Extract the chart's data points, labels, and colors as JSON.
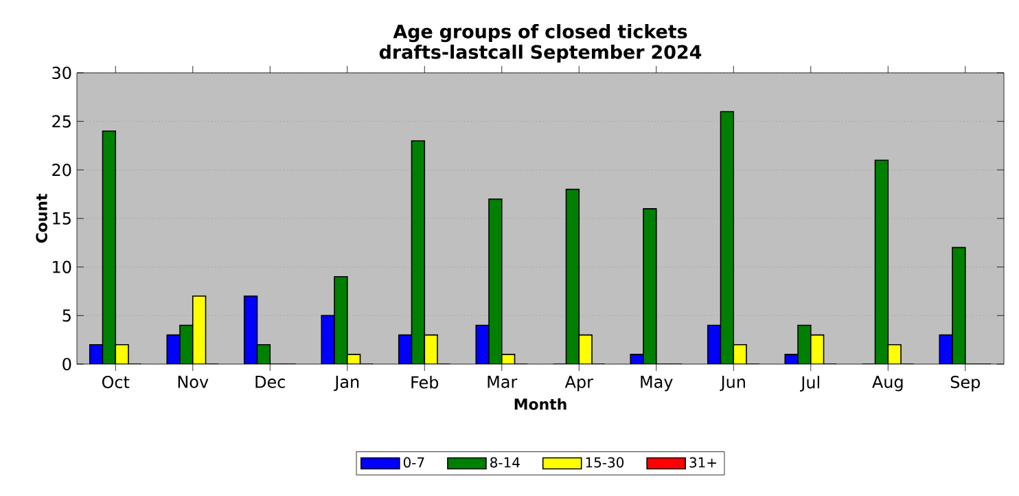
{
  "chart_data": {
    "type": "bar",
    "title": "Age groups of closed tickets\ndrafts-lastcall September 2024",
    "xlabel": "Month",
    "ylabel": "Count",
    "categories": [
      "Oct",
      "Nov",
      "Dec",
      "Jan",
      "Feb",
      "Mar",
      "Apr",
      "May",
      "Jun",
      "Jul",
      "Aug",
      "Sep"
    ],
    "series": [
      {
        "name": "0-7",
        "color": "#0000ff",
        "values": [
          2,
          3,
          7,
          5,
          3,
          4,
          0,
          1,
          4,
          1,
          0,
          3
        ]
      },
      {
        "name": "8-14",
        "color": "#008000",
        "values": [
          24,
          4,
          2,
          9,
          23,
          17,
          18,
          16,
          26,
          4,
          21,
          12
        ]
      },
      {
        "name": "15-30",
        "color": "#ffff00",
        "values": [
          2,
          7,
          0,
          1,
          3,
          1,
          3,
          0,
          2,
          3,
          2,
          0
        ]
      },
      {
        "name": "31+",
        "color": "#ff0000",
        "values": [
          0,
          0,
          0,
          0,
          0,
          0,
          0,
          0,
          0,
          0,
          0,
          0
        ]
      }
    ],
    "ylim": [
      0,
      30
    ],
    "yticks": [
      0,
      5,
      10,
      15,
      20,
      25,
      30
    ],
    "grid": "y",
    "legend": "bottom"
  }
}
